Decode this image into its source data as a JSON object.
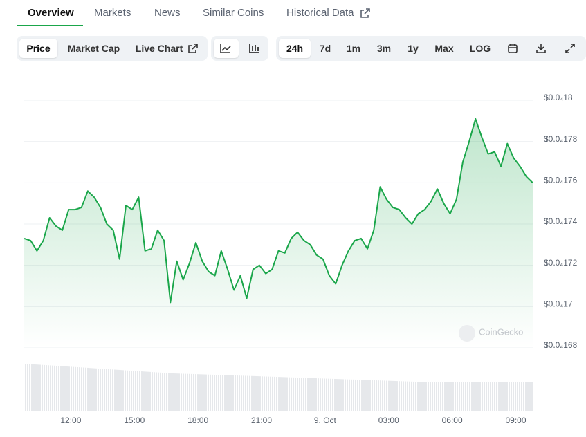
{
  "tabs": [
    "Overview",
    "Markets",
    "News",
    "Similar Coins",
    "Historical Data"
  ],
  "buttons": {
    "type_group": [
      "Price",
      "Market Cap",
      "Live Chart"
    ],
    "range_group": [
      "24h",
      "7d",
      "1m",
      "3m",
      "1y",
      "Max",
      "LOG"
    ]
  },
  "chart_data": {
    "type": "line",
    "watermark": "CoinGecko",
    "color": "#1aa64a",
    "grid": true,
    "x": [
      9.8,
      10.1,
      10.4,
      10.7,
      11,
      11.3,
      11.6,
      11.9,
      12.2,
      12.5,
      12.8,
      13.1,
      13.4,
      13.7,
      14,
      14.3,
      14.6,
      14.9,
      15.2,
      15.5,
      15.8,
      16.1,
      16.4,
      16.7,
      17,
      17.3,
      17.6,
      17.9,
      18.2,
      18.5,
      18.8,
      19.1,
      19.4,
      19.7,
      20,
      20.3,
      20.6,
      20.9,
      21.2,
      21.5,
      21.8,
      22.1,
      22.4,
      22.7,
      23,
      23.3,
      23.6,
      23.9,
      24.2,
      24.5,
      24.8,
      25.1,
      25.4,
      25.7,
      26,
      26.3,
      26.6,
      26.9,
      27.2,
      27.5,
      27.8,
      28.1,
      28.4,
      28.7,
      29,
      29.3,
      29.6,
      29.9,
      30.2,
      30.5,
      30.8,
      31.1,
      31.4,
      31.7,
      32,
      32.3,
      32.6,
      32.9,
      33.2,
      33.5,
      33.8
    ],
    "values": [
      1.733e-05,
      1.732e-05,
      1.727e-05,
      1.732e-05,
      1.743e-05,
      1.739e-05,
      1.737e-05,
      1.747e-05,
      1.747e-05,
      1.748e-05,
      1.756e-05,
      1.753e-05,
      1.748e-05,
      1.74e-05,
      1.737e-05,
      1.723e-05,
      1.749e-05,
      1.747e-05,
      1.753e-05,
      1.727e-05,
      1.728e-05,
      1.737e-05,
      1.732e-05,
      1.702e-05,
      1.722e-05,
      1.713e-05,
      1.721e-05,
      1.731e-05,
      1.722e-05,
      1.717e-05,
      1.715e-05,
      1.727e-05,
      1.718e-05,
      1.708e-05,
      1.715e-05,
      1.704e-05,
      1.718e-05,
      1.72e-05,
      1.716e-05,
      1.718e-05,
      1.727e-05,
      1.726e-05,
      1.733e-05,
      1.736e-05,
      1.732e-05,
      1.73e-05,
      1.725e-05,
      1.723e-05,
      1.715e-05,
      1.711e-05,
      1.72e-05,
      1.727e-05,
      1.732e-05,
      1.733e-05,
      1.728e-05,
      1.737e-05,
      1.758e-05,
      1.752e-05,
      1.748e-05,
      1.747e-05,
      1.743e-05,
      1.74e-05,
      1.745e-05,
      1.747e-05,
      1.751e-05,
      1.757e-05,
      1.75e-05,
      1.745e-05,
      1.752e-05,
      1.77e-05,
      1.78e-05,
      1.791e-05,
      1.782e-05,
      1.774e-05,
      1.775e-05,
      1.768e-05,
      1.779e-05,
      1.772e-05,
      1.768e-05,
      1.763e-05,
      1.76e-05
    ],
    "xlim": [
      9.8,
      33.8
    ],
    "xticks": [
      {
        "value": 12,
        "label": "12:00"
      },
      {
        "value": 15,
        "label": "15:00"
      },
      {
        "value": 18,
        "label": "18:00"
      },
      {
        "value": 21,
        "label": "21:00"
      },
      {
        "value": 24,
        "label": "9. Oct"
      },
      {
        "value": 27,
        "label": "03:00"
      },
      {
        "value": 30,
        "label": "06:00"
      },
      {
        "value": 33,
        "label": "09:00"
      }
    ],
    "ylim": [
      1.68e-05,
      1.8e-05
    ],
    "yticks": [
      {
        "value": 1.8e-05,
        "label": "$0.0₄18"
      },
      {
        "value": 1.78e-05,
        "label": "$0.0₄178"
      },
      {
        "value": 1.76e-05,
        "label": "$0.0₄176"
      },
      {
        "value": 1.74e-05,
        "label": "$0.0₄174"
      },
      {
        "value": 1.72e-05,
        "label": "$0.0₄172"
      },
      {
        "value": 1.7e-05,
        "label": "$0.0₄17"
      },
      {
        "value": 1.68e-05,
        "label": "$0.0₄168"
      }
    ]
  }
}
